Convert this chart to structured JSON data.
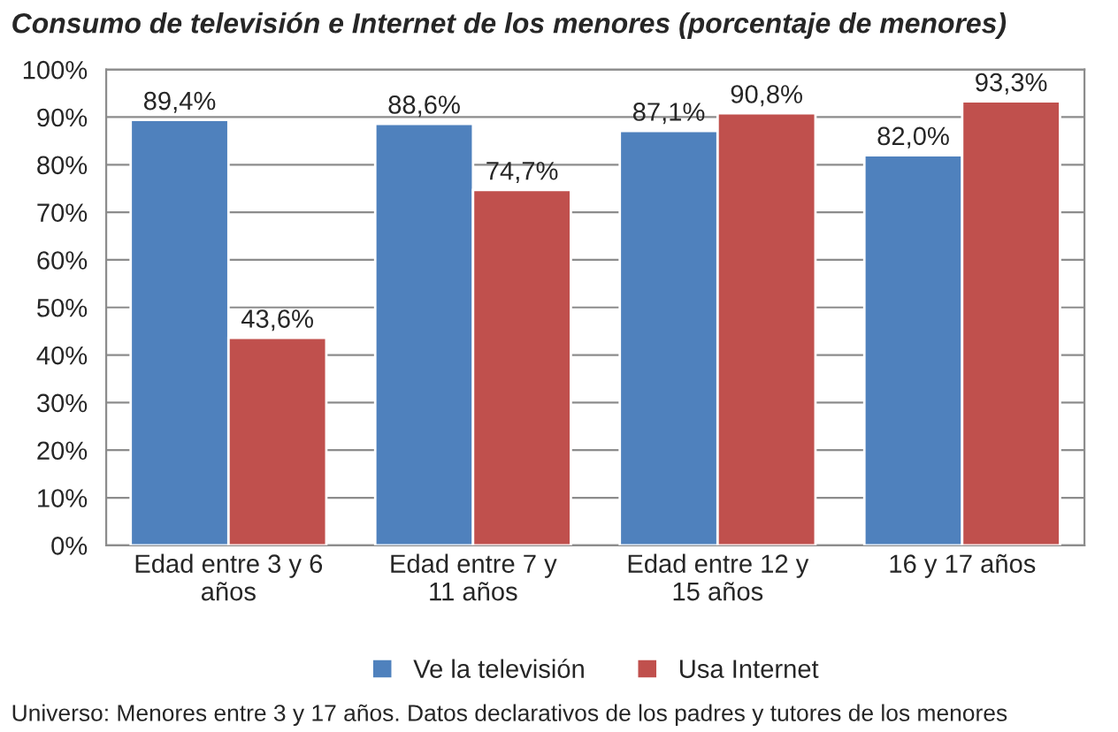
{
  "chart_data": {
    "type": "bar",
    "title": "Consumo de televisión e Internet de los menores (porcentaje de menores)",
    "categories": [
      "Edad entre 3 y 6 años",
      "Edad entre 7 y 11 años",
      "Edad entre 12 y 15 años",
      "16 y 17 años"
    ],
    "series": [
      {
        "name": "Ve la televisión",
        "color": "#4f81bd",
        "values": [
          89.4,
          88.6,
          87.1,
          82.0
        ],
        "value_labels": [
          "89,4%",
          "88,6%",
          "87,1%",
          "82,0%"
        ]
      },
      {
        "name": "Usa Internet",
        "color": "#c0504d",
        "values": [
          43.6,
          74.7,
          90.8,
          93.3
        ],
        "value_labels": [
          "43,6%",
          "74,7%",
          "90,8%",
          "93,3%"
        ]
      }
    ],
    "ylim": [
      0,
      100
    ],
    "yticks": [
      {
        "value": 0,
        "label": "0%"
      },
      {
        "value": 10,
        "label": "10%"
      },
      {
        "value": 20,
        "label": "20%"
      },
      {
        "value": 30,
        "label": "30%"
      },
      {
        "value": 40,
        "label": "40%"
      },
      {
        "value": 50,
        "label": "50%"
      },
      {
        "value": 60,
        "label": "60%"
      },
      {
        "value": 70,
        "label": "70%"
      },
      {
        "value": 80,
        "label": "80%"
      },
      {
        "value": 90,
        "label": "90%"
      },
      {
        "value": 100,
        "label": "100%"
      }
    ],
    "grid": "y",
    "legend": "bottom",
    "annotations": [
      "Universo: Menores entre 3 y 17 años. Datos declarativos de los padres y tutores de los menores"
    ]
  }
}
